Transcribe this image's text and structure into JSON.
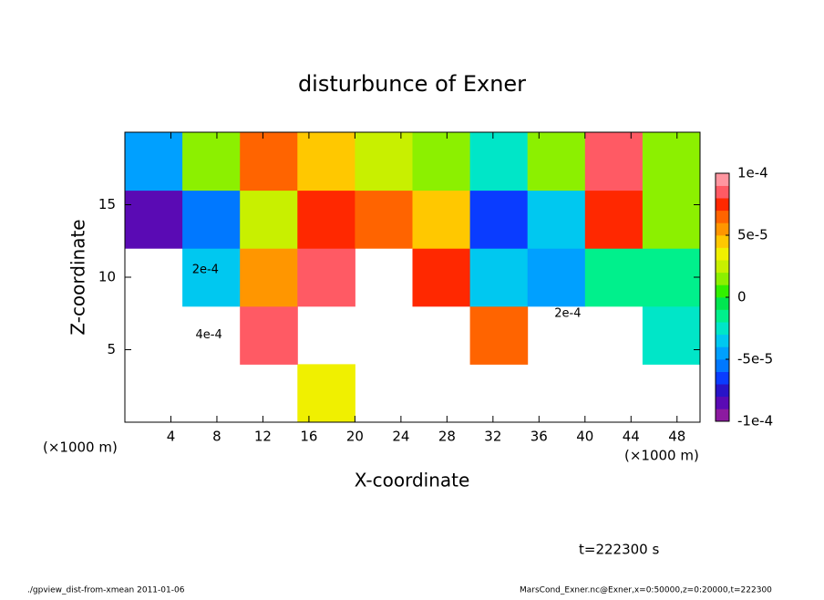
{
  "chart_data": {
    "type": "heatmap",
    "title": "disturbunce of Exner",
    "x_label": "X-coordinate",
    "y_label": "Z-coordinate",
    "x_unit_label": "(×1000 m)",
    "y_unit_label": "(×1000 m)",
    "time_label": "t=222300 s",
    "footer_left": "./gpview_dist-from-xmean  2011-01-06",
    "footer_right": "MarsCond_Exner.nc@Exner,x=0:50000,z=0:20000,t=222300",
    "xlim": [
      0,
      50
    ],
    "ylim": [
      0,
      20
    ],
    "xticks": [
      4,
      8,
      12,
      16,
      20,
      24,
      28,
      32,
      36,
      40,
      44,
      48
    ],
    "yticks": [
      5,
      10,
      15
    ],
    "x": [
      2.5,
      7.5,
      12.5,
      17.5,
      22.5,
      27.5,
      32.5,
      37.5,
      42.5,
      47.5
    ],
    "y": [
      2,
      6,
      10,
      14,
      18
    ],
    "values": [
      [
        null,
        null,
        null,
        3e-05,
        null,
        null,
        null,
        null,
        null,
        null
      ],
      [
        null,
        null,
        8e-05,
        null,
        null,
        null,
        6e-05,
        null,
        null,
        -3e-05
      ],
      [
        null,
        -4e-05,
        5e-05,
        8e-05,
        null,
        7e-05,
        -4e-05,
        -5e-05,
        -2e-05,
        -2e-05
      ],
      [
        -9e-05,
        -6e-05,
        2e-05,
        7e-05,
        6e-05,
        4e-05,
        -7e-05,
        -4e-05,
        7e-05,
        1e-05
      ],
      [
        -5e-05,
        1e-05,
        6e-05,
        4e-05,
        2e-05,
        1e-05,
        -3e-05,
        1e-05,
        8e-05,
        1e-05
      ]
    ],
    "annotations": [
      {
        "text": "2e-4",
        "x": 7,
        "y": 10.5
      },
      {
        "text": "4e-4",
        "x": 7.3,
        "y": 6
      },
      {
        "text": "2e-4",
        "x": 38.5,
        "y": 7.5
      }
    ],
    "colorbar": {
      "lim": [
        -0.0001,
        0.0001
      ],
      "ticks": [
        {
          "value": 0.0001,
          "label": "1e-4"
        },
        {
          "value": 5e-05,
          "label": "5e-5"
        },
        0,
        {
          "value": -5e-05,
          "label": "-5e-5"
        },
        {
          "value": -0.0001,
          "label": "-1e-4"
        }
      ],
      "levels": [
        -0.0001,
        -9e-05,
        -8e-05,
        -7e-05,
        -6e-05,
        -5e-05,
        -4e-05,
        -3e-05,
        -2e-05,
        -1e-05,
        0,
        1e-05,
        2e-05,
        3e-05,
        4e-05,
        5e-05,
        6e-05,
        7e-05,
        8e-05,
        9e-05,
        0.0001
      ],
      "colors": [
        "#8c1aa0",
        "#5a0ab4",
        "#2814c8",
        "#0a3cff",
        "#0078ff",
        "#00a0ff",
        "#00c8f0",
        "#00e6c8",
        "#00f08c",
        "#00e650",
        "#32f000",
        "#8cf000",
        "#c8f000",
        "#f0f000",
        "#ffc800",
        "#ff9600",
        "#ff6400",
        "#ff2800",
        "#ff5a64",
        "#ff96a0"
      ]
    }
  }
}
